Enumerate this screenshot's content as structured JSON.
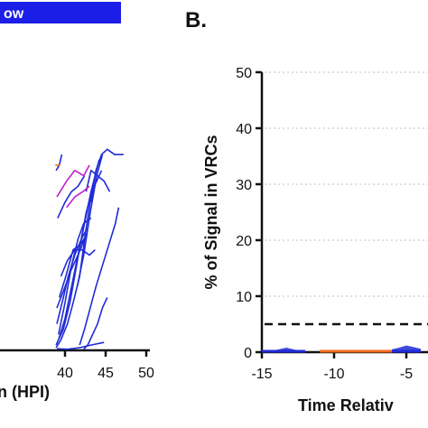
{
  "colors": {
    "blue": "#1f2bd6",
    "magenta": "#c21fcf",
    "orange": "#f26a1b",
    "axis": "#111111",
    "grid": "#bfbfbf",
    "legend_bg": "#1b1ee6"
  },
  "legend": {
    "label": "ow"
  },
  "chart_data": [
    {
      "type": "line",
      "panel": "A",
      "xlabel": "n  (HPI)",
      "xlim": [
        30,
        50
      ],
      "ylim": [
        0,
        50
      ],
      "x_ticks": [
        40,
        45,
        50
      ],
      "x_tick_labels": [
        "40",
        "45",
        "50"
      ],
      "series": [
        {
          "color": "blue",
          "x": [
            38.9,
            39.5,
            40.3,
            41.0,
            41.8,
            42.5,
            43.3,
            44.5
          ],
          "y": [
            0.5,
            2,
            5,
            9,
            14,
            22,
            30,
            34
          ]
        },
        {
          "color": "blue",
          "x": [
            38.9,
            39.8,
            40.6,
            41.3,
            42.0,
            42.6,
            43.3
          ],
          "y": [
            1,
            4,
            9,
            15,
            21,
            26,
            30
          ]
        },
        {
          "color": "blue",
          "x": [
            39.2,
            40.0,
            40.8,
            41.6,
            42.3,
            43.2
          ],
          "y": [
            3,
            9,
            16,
            21,
            24,
            25
          ]
        },
        {
          "color": "blue",
          "x": [
            39.0,
            39.8,
            40.4,
            41.2,
            42.0,
            42.7
          ],
          "y": [
            5,
            10,
            14,
            18,
            21,
            23
          ]
        },
        {
          "color": "blue",
          "x": [
            39.3,
            40.1,
            41.0,
            41.9,
            42.7
          ],
          "y": [
            10,
            14,
            19,
            20,
            22
          ]
        },
        {
          "color": "blue",
          "x": [
            39.5,
            40.3,
            41.2,
            42.1,
            43.0,
            43.7
          ],
          "y": [
            14,
            17,
            19,
            19,
            18,
            19
          ]
        },
        {
          "color": "blue",
          "x": [
            39.0,
            40.0,
            40.7,
            41.6,
            42.4
          ],
          "y": [
            8,
            12,
            15,
            18,
            21
          ]
        },
        {
          "color": "blue",
          "x": [
            39.2,
            40.0,
            40.8,
            41.6,
            42.4,
            43.2,
            44.2
          ],
          "y": [
            2,
            6,
            12,
            18,
            24,
            30,
            36
          ]
        },
        {
          "color": "blue",
          "x": [
            41.5,
            42.3,
            43.1,
            43.9,
            44.6
          ],
          "y": [
            12,
            18,
            26,
            33,
            37
          ]
        },
        {
          "color": "blue",
          "x": [
            43.2,
            43.8,
            44.5,
            45.2,
            46.1,
            47.2
          ],
          "y": [
            28,
            34,
            37,
            38,
            37,
            37
          ]
        },
        {
          "color": "blue",
          "x": [
            42.6,
            43.2,
            44.0,
            44.8,
            45.5
          ],
          "y": [
            30,
            34,
            33,
            32,
            30
          ]
        },
        {
          "color": "blue",
          "x": [
            39.0,
            40.3,
            41.8,
            43.2,
            44.8
          ],
          "y": [
            0.3,
            0.2,
            0.5,
            1,
            1.5
          ]
        },
        {
          "color": "blue",
          "x": [
            42.3,
            42.8,
            43.4,
            44.0,
            44.6,
            45.2
          ],
          "y": [
            0.2,
            1,
            3,
            5,
            8,
            10
          ]
        },
        {
          "color": "blue",
          "x": [
            41.8,
            42.4,
            43.1,
            43.8,
            44.6,
            45.4,
            46.2,
            46.6
          ],
          "y": [
            1,
            4,
            8,
            12,
            16,
            20,
            24,
            27
          ]
        },
        {
          "color": "blue",
          "x": [
            39.1,
            40.0,
            40.8,
            41.6,
            42.4
          ],
          "y": [
            25,
            28,
            30,
            31,
            33
          ]
        },
        {
          "color": "blue",
          "x": [
            38.9,
            39.3,
            39.6
          ],
          "y": [
            34,
            35,
            37
          ]
        },
        {
          "color": "magenta",
          "x": [
            39.0,
            40.2,
            41.2,
            42.3,
            43.0
          ],
          "y": [
            29,
            32,
            34,
            33,
            35
          ]
        },
        {
          "color": "magenta",
          "x": [
            40.2,
            41.2,
            42.2,
            43.0
          ],
          "y": [
            27,
            29,
            30,
            31
          ]
        },
        {
          "color": "orange",
          "x": [
            38.8,
            39.4
          ],
          "y": [
            35,
            35
          ]
        }
      ]
    },
    {
      "type": "area",
      "panel": "B",
      "title": "B.",
      "ylabel": "% of Signal in VRCs",
      "xlabel": "Time Relativ",
      "xlim": [
        -15,
        0
      ],
      "ylim": [
        0,
        50
      ],
      "x_ticks": [
        -15,
        -10,
        -5
      ],
      "x_tick_labels": [
        "-15",
        "-10",
        "-5"
      ],
      "y_ticks": [
        0,
        10,
        20,
        30,
        40,
        50
      ],
      "y_tick_labels": [
        "0",
        "10",
        "20",
        "30",
        "40",
        "50"
      ],
      "threshold": 5,
      "series": [
        {
          "color": "blue",
          "x": [
            -15,
            -14,
            -13.3,
            -12.5,
            -12
          ],
          "y": [
            0.2,
            0.4,
            0.8,
            0.3,
            0.2
          ]
        },
        {
          "color": "orange",
          "x": [
            -11,
            -10,
            -9,
            -8,
            -7,
            -6
          ],
          "y": [
            0.1,
            0.2,
            0.1,
            0.3,
            0.2,
            0.4
          ]
        },
        {
          "color": "blue",
          "x": [
            -6,
            -5.5,
            -5,
            -4.5,
            -4
          ],
          "y": [
            0.5,
            0.8,
            1.2,
            0.9,
            0.6
          ]
        }
      ]
    }
  ]
}
